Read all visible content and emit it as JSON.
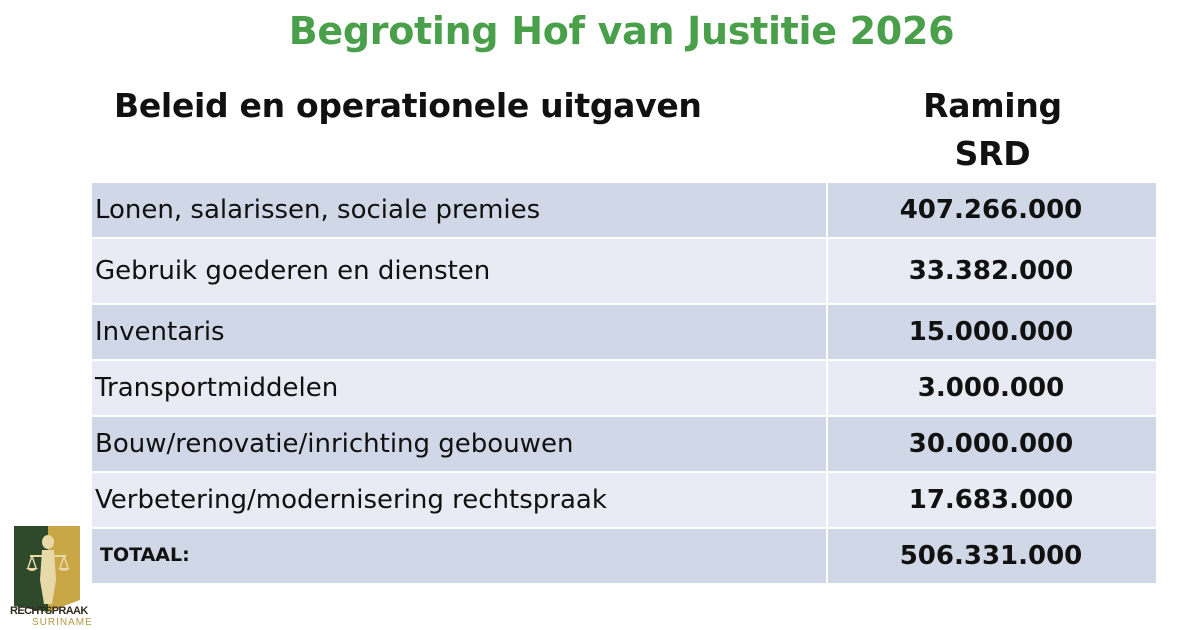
{
  "title": "Begroting Hof van Justitie 2026",
  "header": {
    "col_left": "Beleid en operationele uitgaven",
    "col_right_line1": "Raming",
    "col_right_line2": "SRD"
  },
  "rows": [
    {
      "label": "Lonen, salarissen, sociale premies",
      "value": "407.266.000"
    },
    {
      "label": "Gebruik goederen en diensten",
      "value": "33.382.000"
    },
    {
      "label": "Inventaris",
      "value": "15.000.000"
    },
    {
      "label": "Transportmiddelen",
      "value": "3.000.000"
    },
    {
      "label": "Bouw/renovatie/inrichting gebouwen",
      "value": "30.000.000"
    },
    {
      "label": "Verbetering/modernisering rechtspraak",
      "value": "17.683.000"
    }
  ],
  "total": {
    "label": "TOTAAL:",
    "value": "506.331.000"
  },
  "logo": {
    "line1": "RECHTSPRAAK",
    "line2": "SURINAME"
  },
  "colors": {
    "title": "#4aa04a",
    "row_odd": "#d0d7e7",
    "row_even": "#e8ebf3",
    "logo_green": "#2f4a2a",
    "logo_gold": "#c9a646"
  }
}
